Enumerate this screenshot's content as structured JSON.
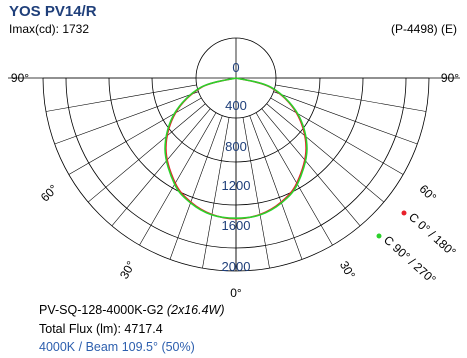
{
  "header": {
    "title": "YOS PV14/R",
    "imax": "Imax(cd): 1732",
    "code": "(P-4498) (E)"
  },
  "info": {
    "model": "PV-SQ-128-4000K-G2",
    "power": "(2x16.4W)",
    "flux": "Total Flux (lm): 4717.4",
    "beam": "4000K / Beam 109.5° (50%)"
  },
  "colors": {
    "c0_180": "#e8202a",
    "c90_270": "#2bd12b",
    "grid": "#000000",
    "radial_labels": "#1f3f7a",
    "title": "#1f3f7a"
  },
  "chart_data": {
    "type": "polar",
    "title": "YOS PV14/R",
    "radial_unit": "cd",
    "radial_ticks": [
      0,
      400,
      800,
      1200,
      1600,
      2000
    ],
    "radial_tick_labels": [
      "0",
      "400",
      "800",
      "1200",
      "1600",
      "2000"
    ],
    "angle_labels": [
      "90°",
      "60°",
      "30°",
      "0°",
      "30°",
      "60°",
      "90°"
    ],
    "angles_deg": [
      -90,
      -75,
      -60,
      -45,
      -30,
      -20,
      -10,
      0,
      10,
      20,
      30,
      45,
      60,
      75,
      90
    ],
    "series": [
      {
        "name": "C 0° / 180°",
        "color": "#e8202a",
        "values": [
          0,
          440,
          860,
          1220,
          1495,
          1625,
          1705,
          1732,
          1705,
          1625,
          1495,
          1220,
          860,
          440,
          0
        ]
      },
      {
        "name": "C 90° / 270°",
        "color": "#2bd12b",
        "values": [
          0,
          450,
          875,
          1235,
          1510,
          1635,
          1710,
          1725,
          1710,
          1635,
          1510,
          1235,
          875,
          450,
          0
        ]
      }
    ]
  }
}
